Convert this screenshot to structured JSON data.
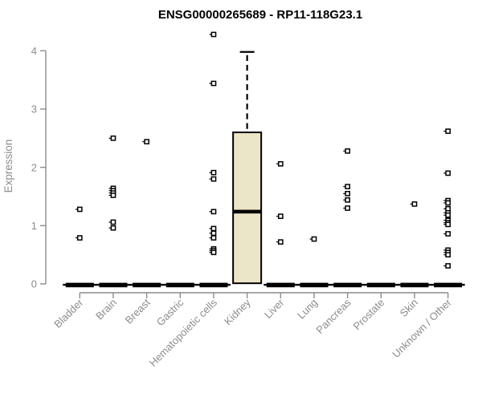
{
  "title": "ENSG00000265689 - RP11-118G23.1",
  "y_axis": {
    "label": "Expression"
  },
  "colors": {
    "background": "#FFFFFF",
    "title_text": "#000000",
    "axis": "#8C8C8C",
    "label_text": "#8C8C8C",
    "box_fill": "#ECE6C8",
    "box_border": "#000000",
    "point_stroke": "#000000",
    "point_fill": "#FFFFFF",
    "zero_bar": "#000000"
  },
  "chart_data": {
    "type": "boxplot",
    "title": "ENSG00000265689 - RP11-118G23.1",
    "xlabel": "",
    "ylabel": "Expression",
    "ylim": [
      0,
      4
    ],
    "yticks": [
      0,
      1,
      2,
      3,
      4
    ],
    "grid": false,
    "legend": "none",
    "categories": [
      "Bladder",
      "Brain",
      "Breast",
      "Gastric",
      "Hematopoietic cells",
      "Kidney",
      "Liver",
      "Lung",
      "Pancreas",
      "Prostate",
      "Skin",
      "Unknown / Other"
    ],
    "series": [
      {
        "category": "Bladder",
        "box": {
          "low": 0,
          "q1": 0,
          "median": 0,
          "q3": 0,
          "high": 0
        },
        "points": [
          1.28,
          0.79
        ]
      },
      {
        "category": "Brain",
        "box": {
          "low": 0,
          "q1": 0,
          "median": 0,
          "q3": 0,
          "high": 0
        },
        "points": [
          2.5,
          1.64,
          1.6,
          1.56,
          1.52,
          1.06,
          0.96
        ]
      },
      {
        "category": "Breast",
        "box": {
          "low": 0,
          "q1": 0,
          "median": 0,
          "q3": 0,
          "high": 0
        },
        "points": [
          2.44
        ]
      },
      {
        "category": "Gastric",
        "box": {
          "low": 0,
          "q1": 0,
          "median": 0,
          "q3": 0,
          "high": 0
        },
        "points": []
      },
      {
        "category": "Hematopoietic cells",
        "box": {
          "low": 0,
          "q1": 0,
          "median": 0,
          "q3": 0,
          "high": 0
        },
        "points": [
          4.28,
          3.44,
          1.91,
          1.8,
          1.24,
          0.95,
          0.87,
          0.79,
          0.6,
          0.57,
          0.54
        ]
      },
      {
        "category": "Kidney",
        "box": {
          "low": 0,
          "q1": 0,
          "median": 1.24,
          "q3": 2.6,
          "high": 3.98
        },
        "points": []
      },
      {
        "category": "Liver",
        "box": {
          "low": 0,
          "q1": 0,
          "median": 0,
          "q3": 0,
          "high": 0
        },
        "points": [
          2.06,
          1.16,
          0.72
        ]
      },
      {
        "category": "Lung",
        "box": {
          "low": 0,
          "q1": 0,
          "median": 0,
          "q3": 0,
          "high": 0
        },
        "points": [
          0.77
        ]
      },
      {
        "category": "Pancreas",
        "box": {
          "low": 0,
          "q1": 0,
          "median": 0,
          "q3": 0,
          "high": 0
        },
        "points": [
          2.28,
          1.67,
          1.55,
          1.44,
          1.3
        ]
      },
      {
        "category": "Prostate",
        "box": {
          "low": 0,
          "q1": 0,
          "median": 0,
          "q3": 0,
          "high": 0
        },
        "points": []
      },
      {
        "category": "Skin",
        "box": {
          "low": 0,
          "q1": 0,
          "median": 0,
          "q3": 0,
          "high": 0
        },
        "points": [
          1.37
        ]
      },
      {
        "category": "Unknown / Other",
        "box": {
          "low": 0,
          "q1": 0,
          "median": 0,
          "q3": 0,
          "high": 0
        },
        "points": [
          2.62,
          1.9,
          1.43,
          1.39,
          1.29,
          1.22,
          1.18,
          1.09,
          1.05,
          1.02,
          0.86,
          0.58,
          0.54,
          0.5,
          0.31
        ]
      }
    ]
  }
}
